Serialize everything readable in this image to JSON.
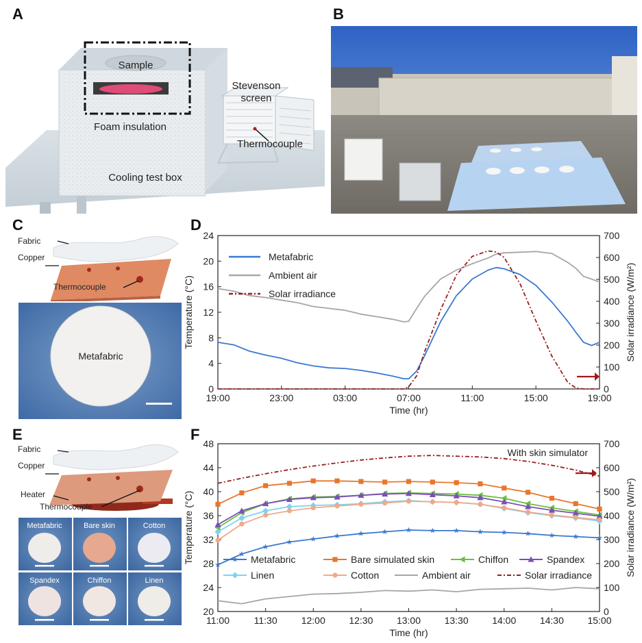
{
  "panels": {
    "a": {
      "letter": "A",
      "labels": {
        "sample": "Sample",
        "foam": "Foam insulation",
        "stevenson": "Stevenson",
        "screen": "screen",
        "thermocouple": "Thermocouple",
        "box": "Cooling test box"
      }
    },
    "b": {
      "letter": "B"
    },
    "c": {
      "letter": "C",
      "labels": {
        "fabric": "Fabric",
        "copper1": "Copper",
        "copper2": "plate",
        "thermocouple": "Thermocouple",
        "metafabric": "Metafabric"
      }
    },
    "e": {
      "letter": "E",
      "labels": {
        "fabric": "Fabric",
        "copper1": "Copper",
        "copper2": "plate",
        "heater": "Heater",
        "thermocouple": "Thermocouple"
      },
      "samples": [
        "Metafabric",
        "Bare skin",
        "Cotton",
        "Spandex",
        "Chiffon",
        "Linen"
      ]
    },
    "d": {
      "letter": "D"
    },
    "f": {
      "letter": "F"
    }
  },
  "colors": {
    "metafabric": "#3a78d0",
    "ambient": "#a6a6a6",
    "solar": "#9b1b1b",
    "bare": "#e8772e",
    "chiffon": "#6cbf3c",
    "spandex": "#7a4fb8",
    "linen": "#7fd3ef",
    "cotton": "#f0a98a",
    "arrow": "#a01818"
  },
  "chart_data": [
    {
      "id": "D",
      "type": "line",
      "xlabel": "Time (hr)",
      "ylabel": "Temperature (°C)",
      "ylabel_right": "Solar irradiance (W/m²)",
      "xticks": [
        "19:00",
        "23:00",
        "03:00",
        "07:00",
        "11:00",
        "15:00",
        "19:00"
      ],
      "xlim": [
        0,
        24
      ],
      "ylim": [
        0,
        24
      ],
      "yticks": [
        0,
        4,
        8,
        12,
        16,
        20,
        24
      ],
      "ylim_right": [
        0,
        700
      ],
      "yticks_right": [
        0,
        100,
        200,
        300,
        400,
        500,
        600,
        700
      ],
      "legend_position": "top-left",
      "x_hours_after_19": [
        0,
        1,
        2,
        3,
        4,
        5,
        6,
        7,
        8,
        9,
        10,
        11,
        11.7,
        12,
        12.5,
        13,
        14,
        15,
        16,
        17,
        17.5,
        18,
        19,
        20,
        21,
        22,
        22.5,
        23,
        23.5,
        24
      ],
      "series": [
        {
          "name": "Metafabric",
          "axis": "left",
          "color_key": "metafabric",
          "values": [
            7.3,
            6.9,
            5.9,
            5.3,
            4.8,
            4.1,
            3.6,
            3.3,
            3.2,
            2.9,
            2.5,
            2.0,
            1.6,
            1.6,
            2.8,
            5.2,
            10.5,
            14.6,
            17.2,
            18.6,
            19.0,
            18.8,
            17.9,
            16.2,
            13.6,
            10.6,
            8.9,
            7.3,
            6.8,
            7.3
          ]
        },
        {
          "name": "Ambient air",
          "axis": "left",
          "color_key": "ambient",
          "values": [
            15.7,
            15.3,
            14.6,
            14.3,
            13.9,
            13.5,
            12.9,
            12.6,
            12.3,
            11.7,
            11.3,
            10.9,
            10.5,
            10.6,
            12.6,
            14.5,
            17.2,
            18.6,
            19.6,
            20.5,
            21.1,
            21.3,
            21.4,
            21.5,
            21.2,
            19.8,
            18.9,
            17.6,
            17.2,
            16.7
          ]
        },
        {
          "name": "Solar irradiance",
          "axis": "right",
          "color_key": "solar",
          "dashed": true,
          "values": [
            0,
            0,
            0,
            0,
            0,
            0,
            0,
            0,
            0,
            0,
            0,
            0,
            0,
            10,
            60,
            170,
            360,
            520,
            605,
            630,
            625,
            600,
            480,
            310,
            150,
            30,
            5,
            0,
            0,
            0
          ]
        }
      ]
    },
    {
      "id": "F",
      "type": "line",
      "xlabel": "Time (hr)",
      "ylabel": "Temperature (°C)",
      "ylabel_right": "Solar irradiance (W/m²)",
      "annotation": "With skin simulator",
      "xticks": [
        "11:00",
        "11:30",
        "12:00",
        "12:30",
        "13:00",
        "13:30",
        "14:00",
        "14:30",
        "15:00"
      ],
      "xlim": [
        0,
        240
      ],
      "ylim": [
        20,
        48
      ],
      "yticks": [
        20,
        24,
        28,
        32,
        36,
        40,
        44,
        48
      ],
      "ylim_right": [
        0,
        700
      ],
      "yticks_right": [
        0,
        100,
        200,
        300,
        400,
        500,
        600,
        700
      ],
      "legend_position": "bottom",
      "x_minutes_after_11": [
        0,
        15,
        30,
        45,
        60,
        75,
        90,
        105,
        120,
        135,
        150,
        165,
        180,
        195,
        210,
        225,
        240
      ],
      "series": [
        {
          "name": "Metafabric",
          "axis": "left",
          "marker": "star",
          "color_key": "metafabric",
          "values": [
            27.8,
            29.6,
            30.8,
            31.6,
            32.1,
            32.6,
            33.0,
            33.3,
            33.6,
            33.5,
            33.5,
            33.3,
            33.2,
            33.0,
            32.7,
            32.5,
            32.3
          ]
        },
        {
          "name": "Bare simulated skin",
          "axis": "left",
          "marker": "square",
          "color_key": "bare",
          "values": [
            37.9,
            39.8,
            41.0,
            41.4,
            41.8,
            41.8,
            41.7,
            41.6,
            41.7,
            41.6,
            41.5,
            41.3,
            40.6,
            39.9,
            38.9,
            38.0,
            37.1
          ]
        },
        {
          "name": "Chiffon",
          "axis": "left",
          "marker": "triangle-left",
          "color_key": "chiffon",
          "values": [
            34.0,
            36.5,
            38.0,
            38.8,
            39.1,
            39.2,
            39.4,
            39.7,
            39.8,
            39.7,
            39.6,
            39.4,
            38.9,
            38.0,
            37.3,
            36.7,
            36.1
          ]
        },
        {
          "name": "Spandex",
          "axis": "left",
          "marker": "triangle-up",
          "color_key": "spandex",
          "values": [
            34.5,
            36.8,
            38.0,
            38.7,
            39.0,
            39.1,
            39.4,
            39.6,
            39.7,
            39.5,
            39.3,
            39.0,
            38.3,
            37.5,
            36.9,
            36.4,
            35.9
          ]
        },
        {
          "name": "Linen",
          "axis": "left",
          "marker": "diamond",
          "color_key": "linen",
          "values": [
            33.3,
            35.6,
            36.8,
            37.5,
            37.7,
            37.8,
            38.0,
            38.3,
            38.5,
            38.3,
            38.2,
            37.9,
            37.2,
            36.5,
            36.0,
            35.6,
            35.1
          ]
        },
        {
          "name": "Cotton",
          "axis": "left",
          "marker": "circle",
          "color_key": "cotton",
          "values": [
            31.9,
            34.6,
            36.1,
            36.8,
            37.3,
            37.6,
            37.9,
            38.1,
            38.4,
            38.3,
            38.2,
            37.9,
            37.3,
            36.6,
            36.1,
            35.7,
            35.3
          ]
        },
        {
          "name": "Ambient air",
          "axis": "left",
          "marker": "none",
          "color_key": "ambient",
          "values": [
            21.8,
            21.3,
            22.1,
            22.5,
            22.9,
            23.0,
            23.2,
            23.5,
            23.4,
            23.6,
            23.3,
            23.7,
            23.8,
            23.9,
            23.6,
            24.0,
            23.8
          ]
        },
        {
          "name": "Solar irradiance",
          "axis": "right",
          "marker": "none",
          "color_key": "solar",
          "dashed": true,
          "values": [
            535,
            556,
            575,
            592,
            607,
            620,
            632,
            641,
            648,
            651,
            648,
            645,
            638,
            626,
            610,
            590,
            565
          ]
        }
      ]
    }
  ]
}
